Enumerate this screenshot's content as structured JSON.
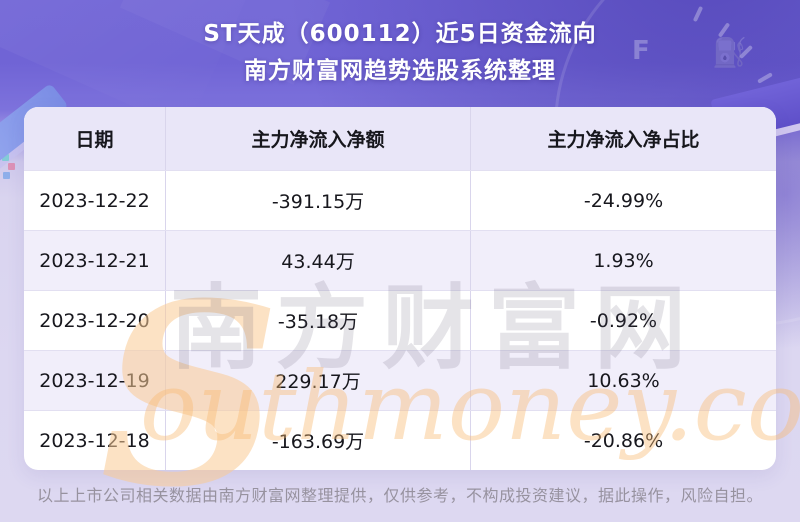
{
  "chart_data": {
    "type": "table",
    "title": "ST天成（600112）近5日资金流向",
    "subtitle": "南方财富网趋势选股系统整理",
    "columns": [
      "日期",
      "主力净流入净额",
      "主力净流入净占比"
    ],
    "rows": [
      {
        "date": "2023-12-22",
        "inflow": "-391.15万",
        "ratio": "-24.99%"
      },
      {
        "date": "2023-12-21",
        "inflow": "43.44万",
        "ratio": "1.93%"
      },
      {
        "date": "2023-12-20",
        "inflow": "-35.18万",
        "ratio": "-0.92%"
      },
      {
        "date": "2023-12-19",
        "inflow": "229.17万",
        "ratio": "10.63%"
      },
      {
        "date": "2023-12-18",
        "inflow": "-163.69万",
        "ratio": "-20.86%"
      }
    ],
    "net_inflow_wan": [
      -391.15,
      43.44,
      -35.18,
      229.17,
      -163.69
    ],
    "net_ratio_pct": [
      -24.99,
      1.93,
      -0.92,
      10.63,
      -20.86
    ],
    "layout": {
      "legend": "none",
      "grid": "table-lines",
      "row_striping": "white / lavender alternating"
    }
  },
  "watermark": {
    "big_s": "S",
    "cjk": "南方财富网",
    "latin": "outhmoney.com"
  },
  "footer": {
    "disclaimer": "以上上市公司相关数据由南方财富网整理提供，仅供参考，不构成投资建议，据此操作，风险自担。"
  },
  "colors": {
    "header_purple": "#7165d6",
    "page_lavender": "#dcd7f1",
    "table_header_bg": "#e9e6f8",
    "row_alt_bg": "#f1eefa",
    "divider": "#d9d5ec",
    "title_text": "#ffffff",
    "body_text": "#17171d",
    "footer_text": "#97929f",
    "watermark_orange": "#f8b973"
  }
}
